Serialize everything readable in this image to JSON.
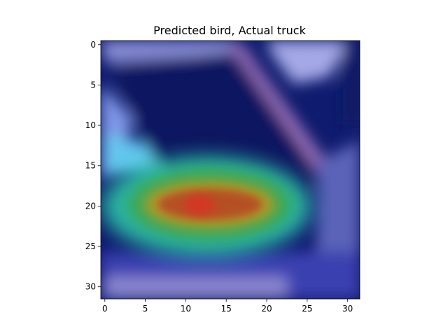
{
  "chart_data": {
    "type": "heatmap",
    "title": "Predicted bird, Actual truck",
    "xlabel": "",
    "ylabel": "",
    "xlim": [
      -0.5,
      31.5
    ],
    "ylim": [
      31.5,
      -0.5
    ],
    "xticks": [
      "0",
      "5",
      "10",
      "15",
      "20",
      "25",
      "30"
    ],
    "yticks": [
      "0",
      "5",
      "10",
      "15",
      "20",
      "25",
      "30"
    ],
    "grid": false,
    "colormap": "jet",
    "overlay": "grad-cam heatmap over image",
    "heat_center": [
      12,
      20
    ],
    "colors": {
      "image_dark": "#0b1660",
      "image_light": "#8a8fd6",
      "hot": "#e03a1a",
      "warm": "#d8a21e",
      "mid": "#22b86a",
      "cool": "#3fd2d2"
    }
  }
}
